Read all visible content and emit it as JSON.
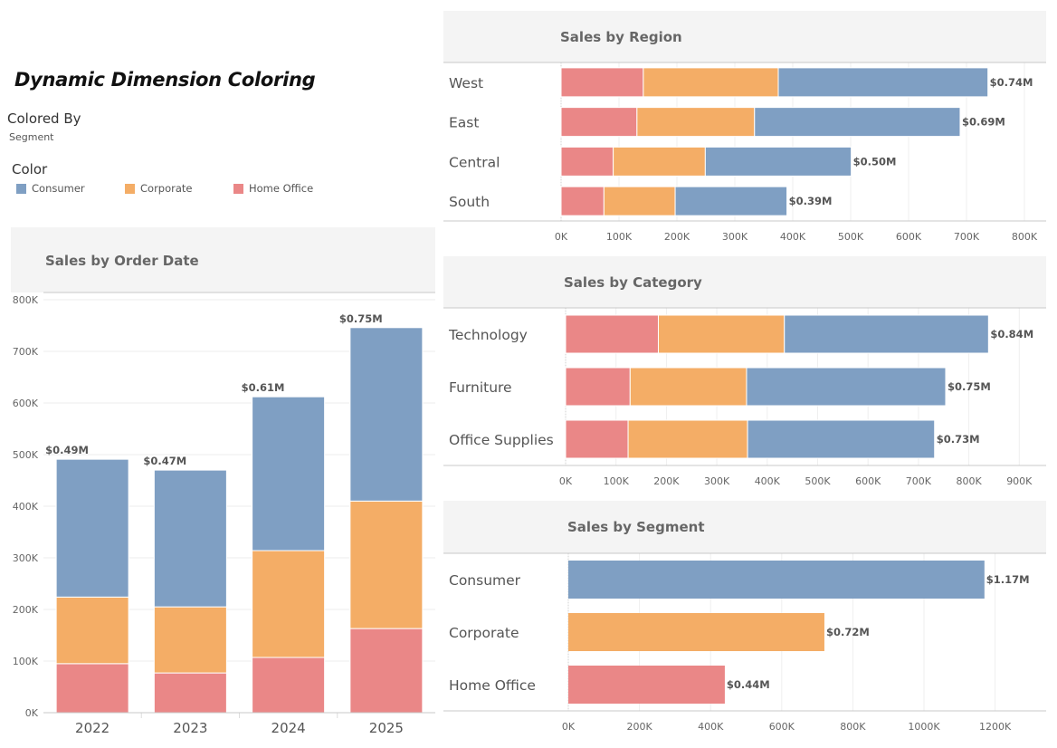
{
  "dashboard": {
    "title": "Dynamic Dimension Coloring",
    "colored_by_label": "Colored By",
    "colored_by_value": "Segment",
    "color_label": "Color"
  },
  "legend": [
    {
      "name": "Consumer",
      "color": "#7f9fc3"
    },
    {
      "name": "Corporate",
      "color": "#f4ad66"
    },
    {
      "name": "Home Office",
      "color": "#ea8787"
    }
  ],
  "chart_data": [
    {
      "type": "bar",
      "stacked": true,
      "orientation": "vertical",
      "title": "Sales by Order Date",
      "categories": [
        "2022",
        "2023",
        "2024",
        "2025"
      ],
      "series": [
        {
          "name": "Home Office",
          "values": [
            95000,
            77000,
            107000,
            163000
          ]
        },
        {
          "name": "Corporate",
          "values": [
            129000,
            128000,
            207000,
            247000
          ]
        },
        {
          "name": "Consumer",
          "values": [
            267000,
            265000,
            298000,
            336000
          ]
        }
      ],
      "total_labels": [
        "$0.49M",
        "$0.47M",
        "$0.61M",
        "$0.75M"
      ],
      "ylim": [
        0,
        800000
      ],
      "yticks": [
        "0K",
        "100K",
        "200K",
        "300K",
        "400K",
        "500K",
        "600K",
        "700K",
        "800K"
      ],
      "grid": true
    },
    {
      "type": "bar",
      "stacked": true,
      "orientation": "horizontal",
      "title": "Sales by Region",
      "categories": [
        "West",
        "East",
        "Central",
        "South"
      ],
      "series": [
        {
          "name": "Home Office",
          "values": [
            142000,
            131000,
            90000,
            74000
          ]
        },
        {
          "name": "Corporate",
          "values": [
            233000,
            203000,
            159000,
            123000
          ]
        },
        {
          "name": "Consumer",
          "values": [
            362000,
            355000,
            252000,
            193000
          ]
        }
      ],
      "total_labels": [
        "$0.74M",
        "$0.69M",
        "$0.50M",
        "$0.39M"
      ],
      "xlim": [
        0,
        850000
      ],
      "xticks": [
        "0K",
        "100K",
        "200K",
        "300K",
        "400K",
        "500K",
        "600K",
        "700K",
        "800K"
      ],
      "grid": true
    },
    {
      "type": "bar",
      "stacked": true,
      "orientation": "horizontal",
      "title": "Sales by Category",
      "categories": [
        "Technology",
        "Furniture",
        "Office Supplies"
      ],
      "series": [
        {
          "name": "Home Office",
          "values": [
            184000,
            128000,
            124000
          ]
        },
        {
          "name": "Corporate",
          "values": [
            250000,
            231000,
            237000
          ]
        },
        {
          "name": "Consumer",
          "values": [
            405000,
            395000,
            371000
          ]
        }
      ],
      "total_labels": [
        "$0.84M",
        "$0.75M",
        "$0.73M"
      ],
      "xlim": [
        0,
        970000
      ],
      "xticks": [
        "0K",
        "100K",
        "200K",
        "300K",
        "400K",
        "500K",
        "600K",
        "700K",
        "800K",
        "900K"
      ],
      "grid": true
    },
    {
      "type": "bar",
      "stacked": false,
      "orientation": "horizontal",
      "title": "Sales by Segment",
      "categories": [
        "Consumer",
        "Corporate",
        "Home Office"
      ],
      "values": [
        1170000,
        720000,
        440000
      ],
      "colors": [
        "#7f9fc3",
        "#f4ad66",
        "#ea8787"
      ],
      "total_labels": [
        "$1.17M",
        "$0.72M",
        "$0.44M"
      ],
      "xlim": [
        0,
        1330000
      ],
      "xticks": [
        "0K",
        "200K",
        "400K",
        "600K",
        "800K",
        "1000K",
        "1200K"
      ],
      "grid": true
    }
  ]
}
